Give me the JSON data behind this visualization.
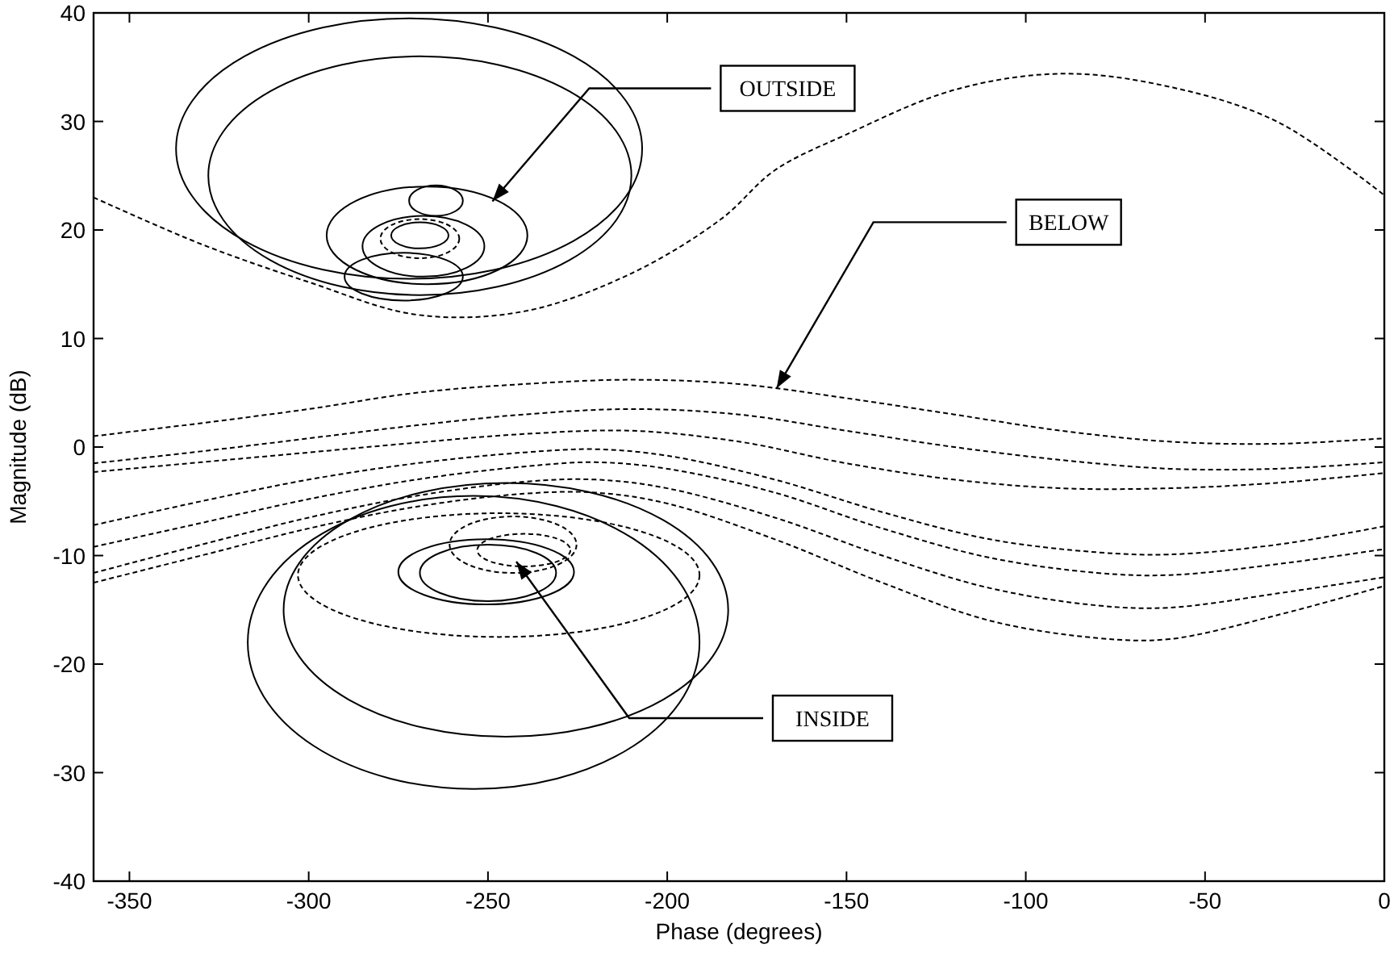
{
  "chart_data": {
    "type": "line",
    "xlabel": "Phase (degrees)",
    "ylabel": "Magnitude (dB)",
    "xlim": [
      -360,
      0
    ],
    "xticks": [
      -350,
      -300,
      -250,
      -200,
      -150,
      -100,
      -50,
      0
    ],
    "ylim": [
      -40,
      40
    ],
    "yticks": [
      -40,
      -30,
      -20,
      -10,
      0,
      10,
      20,
      30,
      40
    ],
    "grid": false,
    "annotations": [
      "OUTSIDE",
      {
        "text": "BELOW",
        "x": -169.5,
        "y": 5.4
      },
      "INSIDE"
    ],
    "series": [
      {
        "color": "#000000",
        "line_style": "dashed",
        "x": [
          -360,
          -330,
          -300,
          -270,
          -240,
          -210,
          -185,
          -170,
          -150,
          -120,
          -90,
          -60,
          -30,
          0
        ],
        "values": [
          23,
          18.7,
          15.2,
          12.2,
          12.5,
          16,
          21,
          25.5,
          28.8,
          32.9,
          34.4,
          33.2,
          30,
          23.2
        ]
      },
      {
        "color": "#000000",
        "line_style": "dashed",
        "x": [
          -360,
          -330,
          -300,
          -270,
          -240,
          -210,
          -180,
          -150,
          -120,
          -90,
          -60,
          -30,
          0
        ],
        "values": [
          1,
          2.2,
          3.5,
          5,
          5.8,
          6.2,
          5.8,
          4.5,
          3,
          1.5,
          0.5,
          0.3,
          0.8
        ]
      },
      {
        "color": "#000000",
        "line_style": "dashed",
        "x": [
          -360,
          -330,
          -300,
          -270,
          -240,
          -210,
          -180,
          -150,
          -120,
          -90,
          -60,
          -30,
          0
        ],
        "values": [
          -1.5,
          -0.4,
          0.8,
          2,
          3,
          3.5,
          3,
          1.5,
          0,
          -1.2,
          -2,
          -2,
          -1.4
        ]
      },
      {
        "color": "#000000",
        "line_style": "dashed",
        "x": [
          -360,
          -330,
          -300,
          -270,
          -240,
          -210,
          -180,
          -150,
          -120,
          -90,
          -60,
          -30,
          0
        ],
        "values": [
          -2.3,
          -1.4,
          -0.5,
          0.4,
          1.2,
          1.5,
          0.5,
          -1.5,
          -3,
          -3.8,
          -3.8,
          -3.3,
          -2.4
        ]
      },
      {
        "color": "#000000",
        "line_style": "dashed",
        "x": [
          -360,
          -330,
          -300,
          -270,
          -240,
          -220,
          -200,
          -170,
          -140,
          -110,
          -80,
          -60,
          -30,
          0
        ],
        "values": [
          -7.2,
          -5,
          -3,
          -1.5,
          -0.5,
          -0.2,
          -0.8,
          -3,
          -6,
          -8.5,
          -9.7,
          -9.9,
          -9,
          -7.3
        ]
      },
      {
        "color": "#000000",
        "line_style": "dashed",
        "x": [
          -360,
          -330,
          -300,
          -270,
          -240,
          -220,
          -200,
          -170,
          -140,
          -110,
          -80,
          -60,
          -30,
          0
        ],
        "values": [
          -9.2,
          -7,
          -4.8,
          -3,
          -1.8,
          -1.4,
          -2,
          -4.2,
          -7.5,
          -10.2,
          -11.6,
          -11.8,
          -10.8,
          -9.4
        ]
      },
      {
        "color": "#000000",
        "line_style": "dashed",
        "x": [
          -360,
          -330,
          -300,
          -270,
          -240,
          -220,
          -200,
          -170,
          -140,
          -110,
          -80,
          -60,
          -30,
          0
        ],
        "values": [
          -11.6,
          -9,
          -6.5,
          -4.5,
          -3.2,
          -3,
          -3.8,
          -6.5,
          -10,
          -13,
          -14.6,
          -14.8,
          -13.5,
          -12
        ]
      },
      {
        "color": "#000000",
        "line_style": "dashed",
        "x": [
          -360,
          -330,
          -300,
          -270,
          -240,
          -220,
          -200,
          -170,
          -140,
          -110,
          -80,
          -60,
          -30,
          0
        ],
        "values": [
          -12.5,
          -10,
          -7.5,
          -5.5,
          -4.3,
          -4.2,
          -5.2,
          -8.5,
          -12.5,
          -16,
          -17.6,
          -17.7,
          -15.5,
          -12.8
        ]
      }
    ]
  }
}
